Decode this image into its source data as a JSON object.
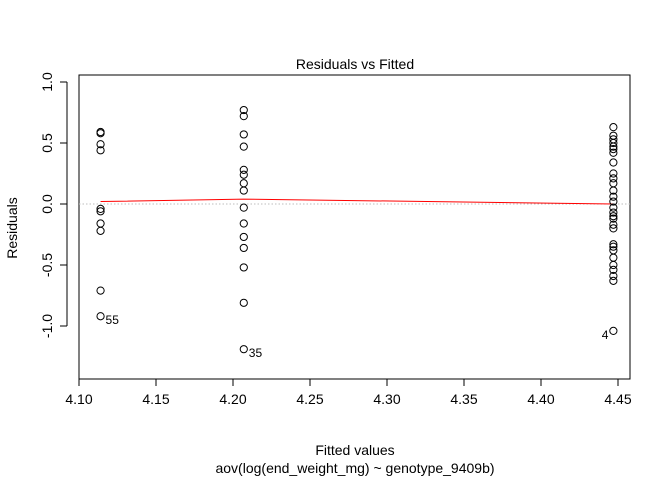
{
  "chart_data": {
    "type": "scatter",
    "title": "Residuals vs Fitted",
    "xlabel": "Fitted values",
    "subtitle": "aov(log(end_weight_mg) ~ genotype_9409b)",
    "ylabel": "Residuals",
    "xlim": [
      4.1,
      4.45
    ],
    "ylim": [
      -1.45,
      1.02
    ],
    "x_ticks": [
      "4.10",
      "4.15",
      "4.20",
      "4.25",
      "4.30",
      "4.35",
      "4.40",
      "4.45"
    ],
    "y_ticks": [
      "-1.0",
      "-0.5",
      "0.0",
      "0.5",
      "1.0"
    ],
    "x_tick_values": [
      4.1,
      4.15,
      4.2,
      4.25,
      4.3,
      4.35,
      4.4,
      4.45
    ],
    "y_tick_values": [
      -1.0,
      -0.5,
      0.0,
      0.5,
      1.0
    ],
    "grid": false,
    "zero_line": {
      "y": 0,
      "color": "#bebebe",
      "style": "dotted"
    },
    "smooth_line": {
      "color": "#ff0000",
      "points": [
        [
          4.114,
          0.02
        ],
        [
          4.207,
          0.04
        ],
        [
          4.447,
          0.0
        ]
      ]
    },
    "groups": [
      {
        "x": 4.114,
        "residuals": [
          0.59,
          0.58,
          0.49,
          0.44,
          -0.04,
          -0.06,
          -0.16,
          -0.22,
          -0.71,
          -0.92
        ]
      },
      {
        "x": 4.207,
        "residuals": [
          0.77,
          0.72,
          0.57,
          0.47,
          0.28,
          0.24,
          0.17,
          0.11,
          -0.03,
          -0.16,
          -0.27,
          -0.36,
          -0.52,
          -0.81,
          -1.19
        ]
      },
      {
        "x": 4.447,
        "residuals": [
          0.63,
          0.56,
          0.53,
          0.5,
          0.47,
          0.45,
          0.42,
          0.34,
          0.25,
          0.21,
          0.17,
          0.11,
          0.06,
          0.02,
          -0.03,
          -0.07,
          -0.1,
          -0.12,
          -0.17,
          -0.2,
          -0.33,
          -0.35,
          -0.38,
          -0.44,
          -0.5,
          -0.54,
          -0.59,
          -0.63,
          -1.04
        ]
      }
    ],
    "point_labels": [
      {
        "text": "55",
        "x": 4.114,
        "y": -0.92,
        "side": "right"
      },
      {
        "text": "35",
        "x": 4.207,
        "y": -1.19,
        "side": "right"
      },
      {
        "text": "4",
        "x": 4.447,
        "y": -1.04,
        "side": "left"
      }
    ]
  }
}
